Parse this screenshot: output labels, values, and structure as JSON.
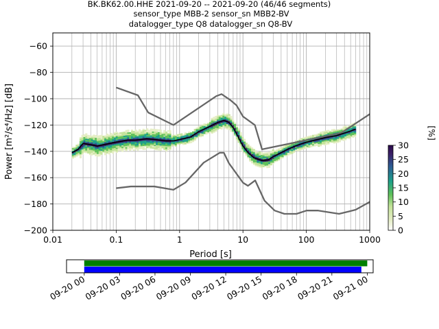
{
  "title_lines": [
    "BK.BK62.00.HHE   2021-09-20 -- 2021-09-20  (46/46 segments)",
    "sensor_type MBB-2 sensor_sn MBB2-BV",
    "datalogger_type Q8 datalogger_sn Q8-BV"
  ],
  "colors": {
    "noise_model": "#666666",
    "mode_curve": "#000000",
    "grid": "#b0b0b0",
    "coverage_top": "#008000",
    "coverage_bottom": "#0000ff"
  },
  "colorbar": {
    "label": "[%]",
    "ticks": [
      "0",
      "5",
      "10",
      "15",
      "20",
      "25",
      "30"
    ],
    "range": [
      0,
      30
    ],
    "colormap": "pqlx"
  },
  "chart_data": [
    {
      "type": "heatmap",
      "subtype": "probabilistic-power-spectral-density",
      "xlabel": "Period [s]",
      "ylabel": "Power [m²/s⁴/Hz] [dB]",
      "xscale": "log",
      "xlim": [
        0.01,
        1000
      ],
      "ylim": [
        -200,
        -50
      ],
      "xticks": [
        "0.01",
        "0.1",
        "1",
        "10",
        "100",
        "1000"
      ],
      "yticks": [
        "−200",
        "−180",
        "−160",
        "−140",
        "−120",
        "−100",
        "−80",
        "−60"
      ],
      "grid": true,
      "series": [
        {
          "name": "",
          "role": "new-high-noise-model",
          "x": [
            0.1,
            0.22,
            0.32,
            0.8,
            3.8,
            4.6,
            6.3,
            7.9,
            10,
            15.4,
            20,
            354.8,
            10000
          ],
          "values": [
            -91.5,
            -97.4,
            -110.5,
            -120,
            -98,
            -96.5,
            -101,
            -105,
            -113.5,
            -120,
            -138.5,
            -126,
            -80
          ]
        },
        {
          "name": "",
          "role": "new-low-noise-model",
          "x": [
            0.1,
            0.17,
            0.4,
            0.8,
            1.24,
            2.4,
            4.3,
            5,
            6,
            10,
            12,
            15.6,
            21.9,
            31.6,
            45,
            70,
            101,
            154,
            328,
            600,
            10000
          ],
          "values": [
            -168,
            -166.7,
            -166.7,
            -169.2,
            -163.7,
            -148.6,
            -141.1,
            -141.1,
            -149,
            -163.8,
            -166.2,
            -162.1,
            -177.5,
            -185,
            -187.5,
            -187.5,
            -185,
            -185,
            -187.5,
            -184.4,
            -151.5
          ]
        },
        {
          "name": "",
          "role": "mode",
          "x": [
            0.02,
            0.025,
            0.03,
            0.04,
            0.05,
            0.07,
            0.1,
            0.15,
            0.2,
            0.3,
            0.4,
            0.6,
            0.8,
            1,
            1.5,
            2,
            3,
            4,
            5,
            6,
            7,
            8,
            9,
            10,
            12,
            15,
            20,
            25,
            30,
            40,
            50,
            70,
            100,
            150,
            200,
            300,
            400,
            500,
            600
          ],
          "values": [
            -141,
            -138.5,
            -134,
            -135,
            -136,
            -134.5,
            -133,
            -131.5,
            -131.5,
            -130.5,
            -131,
            -132,
            -132,
            -131,
            -129,
            -125,
            -121,
            -118,
            -116.5,
            -118,
            -122,
            -127,
            -132,
            -136,
            -141,
            -145,
            -147,
            -146.5,
            -144,
            -141,
            -138.5,
            -135.5,
            -133,
            -131,
            -129.5,
            -128,
            -126,
            -124.5,
            -123
          ]
        }
      ],
      "density_hex_samples": [
        "#ffffff",
        "#e6eec6",
        "#c4e39a",
        "#5fc15a",
        "#1d9f8a",
        "#2d5d94",
        "#3a1f66"
      ]
    },
    {
      "type": "bar",
      "subtype": "data-coverage-timeline",
      "xlabel": "",
      "ylabel": "",
      "x_range": [
        "2021-09-20 00:00",
        "2021-09-21 00:00"
      ],
      "xlim": [
        "2021-09-19 22:30",
        "2021-09-21 00:30"
      ],
      "tick_labels": [
        "09-20 00",
        "09-20 03",
        "09-20 06",
        "09-20 09",
        "09-20 12",
        "09-20 15",
        "09-20 18",
        "09-20 21",
        "09-21 00"
      ],
      "bars": [
        {
          "name": "",
          "role": "data-availability",
          "start": "2021-09-20 00:00",
          "end": "2021-09-21 00:00"
        },
        {
          "name": "",
          "role": "processed-segments",
          "start": "2021-09-20 00:00",
          "end": "2021-09-20 23:30"
        }
      ]
    }
  ]
}
